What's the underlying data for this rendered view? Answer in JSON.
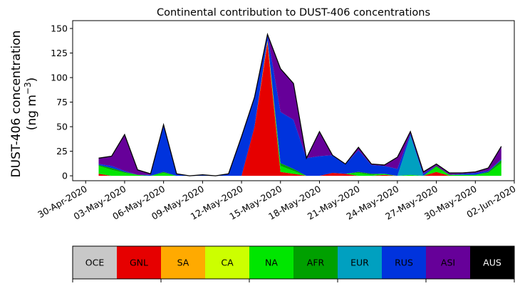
{
  "chart_data": {
    "type": "area",
    "stacked": true,
    "title": "Continental contribution to DUST-406 concentrations",
    "ylabel_line1": "DUST-406 concentration",
    "ylabel_line2_prefix": "(ng m",
    "ylabel_line2_sup": "−3",
    "ylabel_line2_suffix": ")",
    "xlabel": "",
    "ylim": [
      -5,
      158
    ],
    "xlim": [
      "2020-04-29",
      "2020-06-02"
    ],
    "yticks": [
      0,
      25,
      50,
      75,
      100,
      125,
      150
    ],
    "xticks": [
      "30-Apr-2020",
      "03-May-2020",
      "06-May-2020",
      "09-May-2020",
      "12-May-2020",
      "15-May-2020",
      "18-May-2020",
      "21-May-2020",
      "24-May-2020",
      "27-May-2020",
      "30-May-2020",
      "02-Jun-2020"
    ],
    "grid": false,
    "x": [
      "2020-05-01",
      "2020-05-02",
      "2020-05-03",
      "2020-05-04",
      "2020-05-05",
      "2020-05-06",
      "2020-05-07",
      "2020-05-08",
      "2020-05-09",
      "2020-05-10",
      "2020-05-11",
      "2020-05-12",
      "2020-05-13",
      "2020-05-14",
      "2020-05-15",
      "2020-05-16",
      "2020-05-17",
      "2020-05-18",
      "2020-05-19",
      "2020-05-20",
      "2020-05-21",
      "2020-05-22",
      "2020-05-23",
      "2020-05-24",
      "2020-05-25",
      "2020-05-26",
      "2020-05-27",
      "2020-05-28",
      "2020-05-29",
      "2020-05-30",
      "2020-05-31",
      "2020-06-01"
    ],
    "series": [
      {
        "name": "OCE",
        "color": "#c8c8c8",
        "values": [
          0,
          0,
          0,
          0,
          0,
          0,
          0,
          0,
          0,
          0,
          0,
          0,
          0,
          0,
          0,
          0,
          0,
          0,
          0,
          0,
          0,
          0,
          0,
          0,
          0,
          0,
          0,
          0,
          0,
          0,
          0,
          0
        ]
      },
      {
        "name": "GNL",
        "color": "#e60000",
        "values": [
          2,
          0,
          0,
          0,
          0,
          0,
          0,
          0,
          0,
          0,
          0,
          0,
          50,
          135,
          4,
          2,
          0,
          0,
          3,
          2,
          0,
          0,
          1,
          0,
          0,
          0,
          4,
          0,
          0,
          0,
          0,
          0
        ]
      },
      {
        "name": "SA",
        "color": "#ffaa00",
        "values": [
          0,
          0,
          0,
          0,
          0,
          0,
          0,
          0,
          0,
          0,
          0,
          0,
          0,
          3,
          0,
          0,
          0,
          0,
          0,
          0,
          0,
          0,
          0,
          0,
          0,
          0,
          0,
          0,
          0,
          0,
          0,
          0
        ]
      },
      {
        "name": "CA",
        "color": "#ccff00",
        "values": [
          0,
          0,
          0,
          0,
          0,
          0,
          0,
          0,
          0,
          0,
          0,
          0,
          0,
          0,
          0,
          0,
          0,
          0,
          0,
          0,
          0,
          0,
          0,
          0,
          0,
          0,
          0,
          0,
          0,
          0,
          0,
          0
        ]
      },
      {
        "name": "NA",
        "color": "#00e600",
        "values": [
          8,
          6,
          3,
          1,
          0,
          3,
          0,
          0,
          0,
          0,
          0,
          0,
          0,
          0,
          6,
          3,
          0,
          0,
          0,
          0,
          3,
          1,
          1,
          0,
          1,
          0,
          5,
          1,
          1,
          1,
          3,
          13
        ]
      },
      {
        "name": "AFR",
        "color": "#00a000",
        "values": [
          1,
          2,
          1,
          0,
          0,
          1,
          0,
          0,
          0,
          0,
          0,
          0,
          0,
          0,
          3,
          2,
          0,
          0,
          0,
          0,
          1,
          1,
          0,
          0,
          0,
          0,
          1,
          0,
          0,
          0,
          1,
          3
        ]
      },
      {
        "name": "EUR",
        "color": "#00a0c0",
        "values": [
          0,
          0,
          0,
          0,
          0,
          0,
          0,
          0,
          0,
          0,
          0,
          0,
          0,
          0,
          0,
          0,
          0,
          0,
          0,
          0,
          0,
          0,
          0,
          0,
          40,
          0,
          0,
          0,
          0,
          0,
          0,
          0
        ]
      },
      {
        "name": "RUS",
        "color": "#0033dd",
        "values": [
          1,
          2,
          1,
          0,
          1,
          48,
          2,
          0,
          1,
          0,
          2,
          40,
          30,
          6,
          52,
          50,
          18,
          20,
          18,
          10,
          22,
          9,
          8,
          7,
          2,
          2,
          0,
          0,
          1,
          2,
          1,
          1
        ]
      },
      {
        "name": "ASI",
        "color": "#660099",
        "values": [
          6,
          10,
          37,
          5,
          1,
          0,
          0,
          0,
          0,
          0,
          0,
          0,
          0,
          0,
          44,
          37,
          0,
          25,
          0,
          0,
          3,
          1,
          1,
          12,
          2,
          2,
          2,
          2,
          1,
          1,
          3,
          13
        ]
      },
      {
        "name": "AUS",
        "color": "#000000",
        "values": [
          0,
          0,
          0,
          0,
          0,
          0,
          0,
          0,
          0,
          0,
          0,
          0,
          0,
          0,
          0,
          0,
          0,
          0,
          0,
          0,
          0,
          0,
          0,
          0,
          0,
          0,
          0,
          0,
          0,
          0,
          0,
          0
        ]
      }
    ]
  },
  "legend": {
    "items": [
      {
        "label": "OCE",
        "color": "#c8c8c8",
        "text_color": "#000000"
      },
      {
        "label": "GNL",
        "color": "#e60000",
        "text_color": "#000000"
      },
      {
        "label": "SA",
        "color": "#ffaa00",
        "text_color": "#000000"
      },
      {
        "label": "CA",
        "color": "#ccff00",
        "text_color": "#000000"
      },
      {
        "label": "NA",
        "color": "#00e600",
        "text_color": "#000000"
      },
      {
        "label": "AFR",
        "color": "#00a000",
        "text_color": "#000000"
      },
      {
        "label": "EUR",
        "color": "#00a0c0",
        "text_color": "#000000"
      },
      {
        "label": "RUS",
        "color": "#0033dd",
        "text_color": "#000000"
      },
      {
        "label": "ASI",
        "color": "#660099",
        "text_color": "#000000"
      },
      {
        "label": "AUS",
        "color": "#000000",
        "text_color": "#ffffff"
      }
    ]
  }
}
